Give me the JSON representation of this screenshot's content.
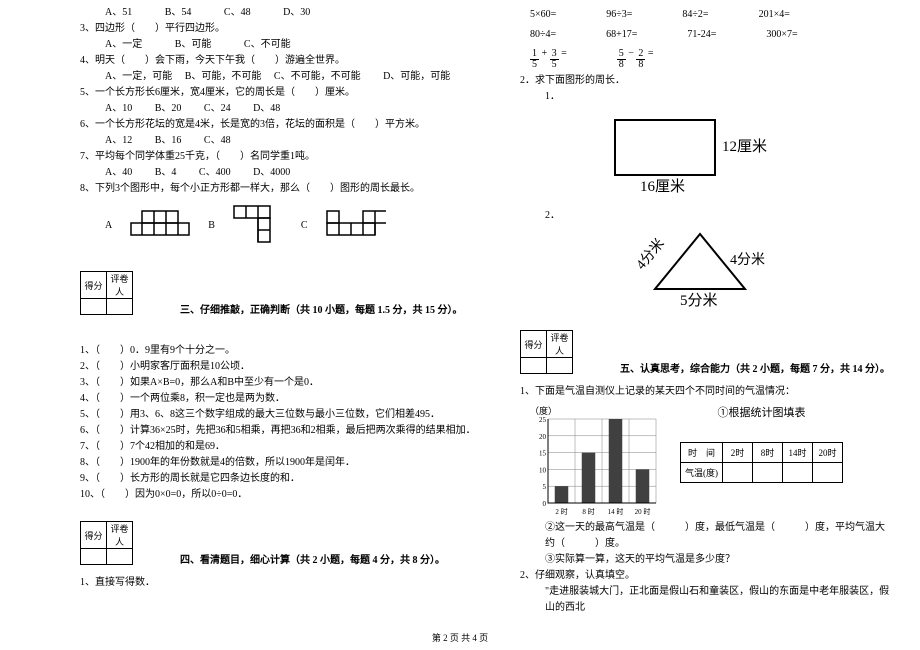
{
  "left": {
    "q2opts": {
      "a": "A、51",
      "b": "B、54",
      "c": "C、48",
      "d": "D、30"
    },
    "q3": "3、四边形（　　）平行四边形。",
    "q3opts": {
      "a": "A、一定",
      "b": "B、可能",
      "c": "C、不可能"
    },
    "q4": "4、明天（　　）会下雨，今天下午我（　　）游遍全世界。",
    "q4opts": {
      "a": "A、一定，可能",
      "b": "B、可能，不可能",
      "c": "C、不可能，不可能",
      "d": "D、可能，可能"
    },
    "q5": "5、一个长方形长6厘米，宽4厘米，它的周长是（　　）厘米。",
    "q5opts": {
      "a": "A、10",
      "b": "B、20",
      "c": "C、24",
      "d": "D、48"
    },
    "q6": "6、一个长方形花坛的宽是4米，长是宽的3倍，花坛的面积是（　　）平方米。",
    "q6opts": {
      "a": "A、12",
      "b": "B、16",
      "c": "C、48"
    },
    "q7": "7、平均每个同学体重25千克，（　　）名同学重1吨。",
    "q7opts": {
      "a": "A、40",
      "b": "B、4",
      "c": "C、400",
      "d": "D、4000"
    },
    "q8": "8、下列3个图形中，每个小正方形都一样大，那么（　　）图形的周长最长。",
    "shapeA": "A",
    "shapeB": "B",
    "shapeC": "C",
    "scoreH1": "得分",
    "scoreH2": "评卷人",
    "sec3": "三、仔细推敲，正确判断（共 10 小题，每题 1.5 分，共 15 分）。",
    "j1": "1、（　　）0．9里有9个十分之一。",
    "j2": "2、（　　）小明家客厅面积是10公顷．",
    "j3": "3、（　　）如果A×B=0，那么A和B中至少有一个是0．",
    "j4": "4、（　　）一个两位乘8，积一定也是两为数．",
    "j5": "5、（　　）用3、6、8这三个数字组成的最大三位数与最小三位数，它们相差495．",
    "j6": "6、（　　）计算36×25时，先把36和5相乘，再把36和2相乘，最后把两次乘得的结果相加．",
    "j7": "7、（　　）7个42相加的和是69．",
    "j8": "8、（　　）1900年的年份数就是4的倍数，所以1900年是闰年．",
    "j9": "9、（　　）长方形的周长就是它四条边长度的和．",
    "j10": "10、（　　）因为0×0=0，所以0÷0=0．",
    "sec4": "四、看清题目，细心计算（共 2 小题，每题 4 分，共 8 分）。",
    "c1": "1、直接写得数．"
  },
  "right": {
    "r1": {
      "a": "5×60=",
      "b": "96÷3=",
      "c": "84÷2=",
      "d": "201×4="
    },
    "r2": {
      "a": "80÷4=",
      "b": "68+17=",
      "c": "71-24=",
      "d": "300×7="
    },
    "f1": {
      "n1": "1",
      "d1": "5",
      "n2": "3",
      "d2": "5",
      "n3": "5",
      "d3": "8",
      "n4": "2",
      "d4": "8"
    },
    "p2": "2．求下面图形的周长．",
    "p2_1": "1．",
    "rect_r": "12厘米",
    "rect_b": "16厘米",
    "p2_2": "2．",
    "tri_l": "4分米",
    "tri_r": "4分米",
    "tri_b": "5分米",
    "scoreH1": "得分",
    "scoreH2": "评卷人",
    "sec5": "五、认真思考，综合能力（共 2 小题，每题 7 分，共 14 分）。",
    "s1": "1、下面是气温自测仪上记录的某天四个不同时间的气温情况：",
    "chart_ylabel": "（度）",
    "chart_title": "①根据统计图填表",
    "chart_y": [
      25,
      20,
      15,
      10,
      5,
      0
    ],
    "chart_x": [
      "2 时",
      "8 时",
      "14 时",
      "20 时"
    ],
    "chart_vals": [
      5,
      15,
      25,
      10
    ],
    "tbl_h": [
      "时　间",
      "2时",
      "8时",
      "14时",
      "20时"
    ],
    "tbl_r": "气温(度)",
    "s2": "②这一天的最高气温是（　　　）度，最低气温是（　　　）度，平均气温大约（　　　）度。",
    "s3": "③实际算一算，这天的平均气温是多少度？",
    "s4": "2、仔细观察，认真填空。",
    "s5": "\"走进服装城大门，正北面是假山石和童装区，假山的东面是中老年服装区，假山的西北",
    "footer": "第 2 页 共 4 页"
  },
  "colors": {
    "grid": "#808080",
    "bar": "#404040"
  }
}
